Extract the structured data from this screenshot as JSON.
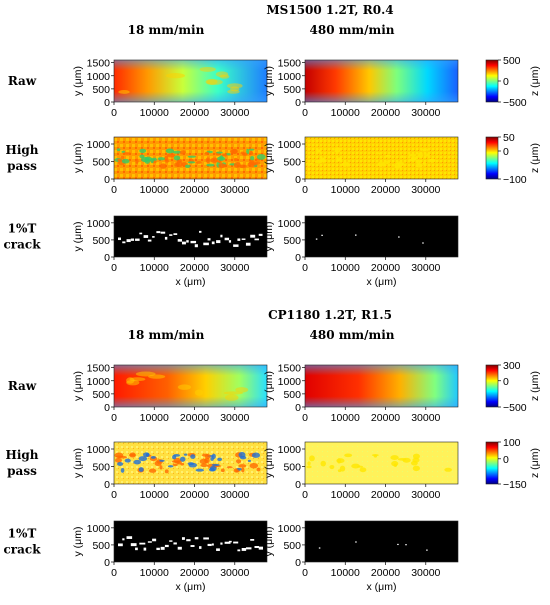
{
  "chart_data": {
    "type": "heatmap",
    "panels": [
      {
        "title": "MS1500 1.2T, R0.4",
        "column_titles": [
          "18 mm/min",
          "480 mm/min"
        ],
        "row_labels": [
          [
            "Raw"
          ],
          [
            "High",
            "pass"
          ],
          [
            "1%T",
            "crack"
          ]
        ],
        "raw": {
          "ylabel": "y (μm)",
          "yticks": [
            "1500",
            "1000",
            "500",
            "0"
          ],
          "xticks": [
            "0",
            "10000",
            "20000",
            "30000"
          ],
          "colorbar": {
            "label": "z (μm)",
            "ticks": [
              "500",
              "0",
              "−500"
            ],
            "range": [
              -500,
              500
            ]
          }
        },
        "highpass": {
          "ylabel": "y (μm)",
          "yticks": [
            "1000",
            "500",
            "0"
          ],
          "xticks": [
            "0",
            "10000",
            "20000",
            "30000"
          ],
          "colorbar": {
            "label": "z (μm)",
            "ticks": [
              "50",
              "0",
              "−100"
            ],
            "range": [
              -100,
              50
            ]
          }
        },
        "crack": {
          "ylabel": "y (μm)",
          "xlabel": "x (μm)",
          "yticks": [
            "1000",
            "500",
            "0"
          ],
          "xticks": [
            "0",
            "10000",
            "20000",
            "30000"
          ]
        }
      },
      {
        "title": "CP1180 1.2T, R1.5",
        "column_titles": [
          "18 mm/min",
          "480 mm/min"
        ],
        "row_labels": [
          [
            "Raw"
          ],
          [
            "High",
            "pass"
          ],
          [
            "1%T",
            "crack"
          ]
        ],
        "raw": {
          "ylabel": "y (μm)",
          "yticks": [
            "1500",
            "1000",
            "500",
            "0"
          ],
          "xticks": [
            "0",
            "10000",
            "20000",
            "30000"
          ],
          "colorbar": {
            "label": "z (μm)",
            "ticks": [
              "300",
              "0",
              "−500"
            ],
            "range": [
              -500,
              300
            ]
          }
        },
        "highpass": {
          "ylabel": "y (μm)",
          "yticks": [
            "1000",
            "500",
            "0"
          ],
          "xticks": [
            "0",
            "10000",
            "20000",
            "30000"
          ],
          "colorbar": {
            "label": "z (μm)",
            "ticks": [
              "100",
              "0",
              "−150"
            ],
            "range": [
              -150,
              100
            ]
          }
        },
        "crack": {
          "ylabel": "y (μm)",
          "xlabel": "x (μm)",
          "yticks": [
            "1000",
            "500",
            "0"
          ],
          "xticks": [
            "0",
            "10000",
            "20000",
            "30000"
          ]
        }
      }
    ]
  }
}
